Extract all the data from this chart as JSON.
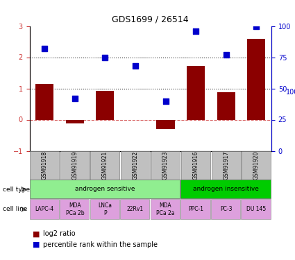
{
  "title": "GDS1699 / 26514",
  "samples": [
    "GSM91918",
    "GSM91919",
    "GSM91921",
    "GSM91922",
    "GSM91923",
    "GSM91916",
    "GSM91917",
    "GSM91920"
  ],
  "log2_ratio": [
    1.15,
    -0.12,
    0.92,
    -0.02,
    -0.3,
    1.72,
    0.88,
    2.58
  ],
  "percentile_rank": [
    0.82,
    0.42,
    0.75,
    0.68,
    0.4,
    0.96,
    0.77,
    1.0
  ],
  "cell_types": [
    {
      "label": "androgen sensitive",
      "span": [
        0,
        5
      ],
      "color": "#90EE90"
    },
    {
      "label": "androgen insensitive",
      "span": [
        5,
        8
      ],
      "color": "#00CC00"
    }
  ],
  "cell_lines": [
    {
      "label": "LAPC-4",
      "span": [
        0,
        1
      ],
      "color": "#DDA0DD"
    },
    {
      "label": "MDA\nPCa 2b",
      "span": [
        1,
        2
      ],
      "color": "#DDA0DD"
    },
    {
      "label": "LNCa\nP",
      "span": [
        2,
        3
      ],
      "color": "#DDA0DD"
    },
    {
      "label": "22Rv1",
      "span": [
        3,
        4
      ],
      "color": "#DDA0DD"
    },
    {
      "label": "MDA\nPCa 2a",
      "span": [
        4,
        5
      ],
      "color": "#DDA0DD"
    },
    {
      "label": "PPC-1",
      "span": [
        5,
        6
      ],
      "color": "#DDA0DD"
    },
    {
      "label": "PC-3",
      "span": [
        6,
        7
      ],
      "color": "#DDA0DD"
    },
    {
      "label": "DU 145",
      "span": [
        7,
        8
      ],
      "color": "#DDA0DD"
    }
  ],
  "bar_color": "#8B0000",
  "dot_color": "#0000CC",
  "ylim_left": [
    -1,
    3
  ],
  "ylim_right": [
    0,
    100
  ],
  "hline_y": [
    0,
    1,
    2
  ],
  "hline_styles": [
    "--",
    ":",
    ":"
  ],
  "hline_colors": [
    "#CC3333",
    "#000000",
    "#000000"
  ],
  "yticks_left": [
    -1,
    0,
    1,
    2,
    3
  ],
  "yticks_right": [
    0,
    25,
    50,
    75,
    100
  ],
  "ylabel_left_color": "#CC3333",
  "ylabel_right_color": "#0000CC",
  "legend_items": [
    {
      "label": "log2 ratio",
      "color": "#8B0000",
      "marker": "s"
    },
    {
      "label": "percentile rank within the sample",
      "color": "#0000CC",
      "marker": "s"
    }
  ],
  "background_color": "#FFFFFF",
  "plot_bg": "#FFFFFF",
  "sample_box_color": "#C0C0C0"
}
